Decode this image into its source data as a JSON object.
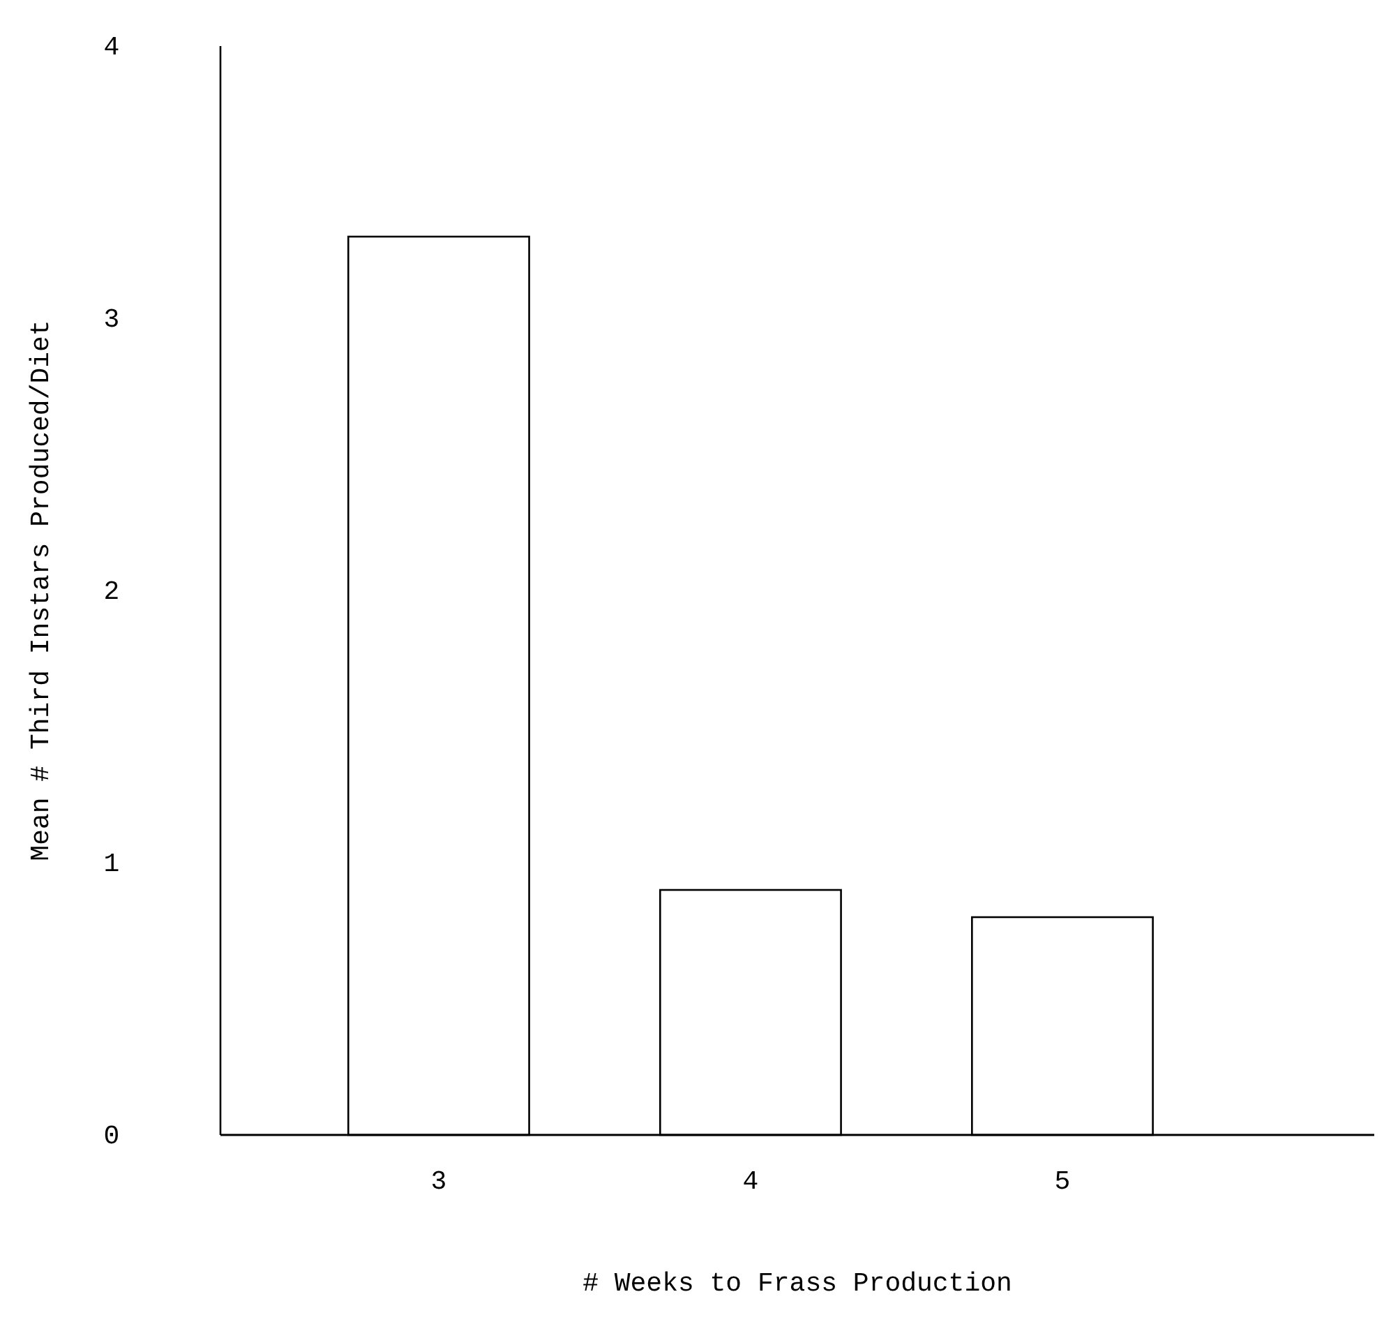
{
  "chart_data": {
    "type": "bar",
    "xlabel": "# Weeks to Frass Production",
    "ylabel": "Mean # Third Instars Produced/Diet",
    "categories": [
      "3",
      "4",
      "5"
    ],
    "values": [
      3.3,
      0.9,
      0.8
    ],
    "color": "#ffffff",
    "ylim": [
      0,
      4
    ],
    "yticks": [
      0,
      1,
      2,
      3,
      4
    ],
    "grid": false
  }
}
